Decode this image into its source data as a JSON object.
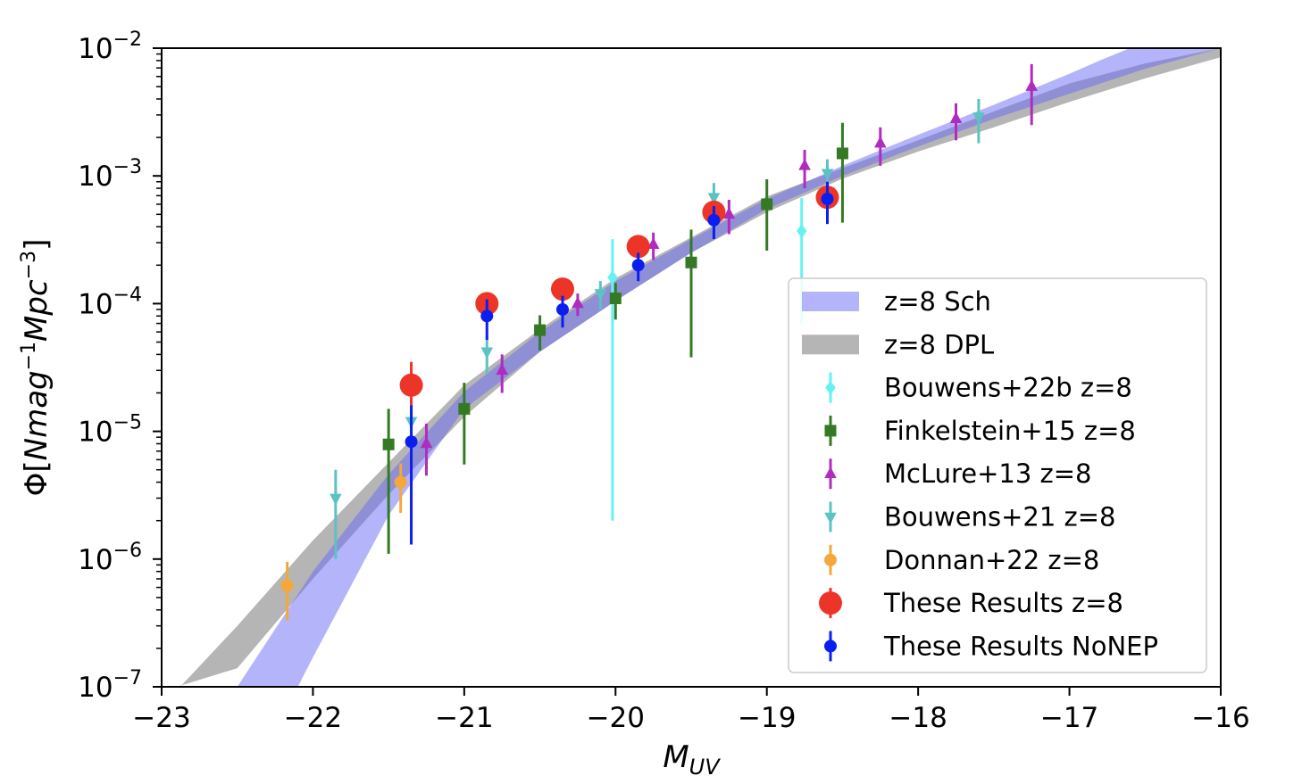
{
  "chart_data": {
    "type": "scatter",
    "title": "",
    "xlabel": "M_UV",
    "ylabel": "Φ[Nmag^-1Mpc^-3]",
    "xlim": [
      -23,
      -16
    ],
    "ylim": [
      1e-07,
      0.01
    ],
    "yscale": "log",
    "grid": false,
    "legend_position": "lower-right",
    "x_ticks": [
      -23,
      -22,
      -21,
      -20,
      -19,
      -18,
      -17,
      -16
    ],
    "x_tick_labels": [
      "−23",
      "−22",
      "−21",
      "−20",
      "−19",
      "−18",
      "−17",
      "−16"
    ],
    "y_ticks": [
      {
        "value": 0.01,
        "base": "10",
        "exp": "−2"
      },
      {
        "value": 0.001,
        "base": "10",
        "exp": "−3"
      },
      {
        "value": 0.0001,
        "base": "10",
        "exp": "−4"
      },
      {
        "value": 1e-05,
        "base": "10",
        "exp": "−5"
      },
      {
        "value": 1e-06,
        "base": "10",
        "exp": "−6"
      },
      {
        "value": 1e-07,
        "base": "10",
        "exp": "−7"
      }
    ],
    "bands": [
      {
        "name": "z=8 DPL",
        "color": "#9c9c9c",
        "opacity": 0.75,
        "upper": [
          [
            -23,
            7e-08
          ],
          [
            -22.5,
            3e-07
          ],
          [
            -22,
            1.4e-06
          ],
          [
            -21.5,
            5.7e-06
          ],
          [
            -21,
            2.3e-05
          ],
          [
            -20.5,
            6.3e-05
          ],
          [
            -20,
            0.000158
          ],
          [
            -19.5,
            0.00033
          ],
          [
            -19,
            0.00069
          ],
          [
            -18.5,
            0.00115
          ],
          [
            -18,
            0.0019
          ],
          [
            -17.5,
            0.0032
          ],
          [
            -17,
            0.0053
          ],
          [
            -16.5,
            0.0076
          ],
          [
            -16,
            0.01
          ]
        ],
        "lower": [
          [
            -22.9,
            1e-07
          ],
          [
            -22.5,
            1.4e-07
          ],
          [
            -22,
            7e-07
          ],
          [
            -21.5,
            3.2e-06
          ],
          [
            -21,
            1.3e-05
          ],
          [
            -20.5,
            4.2e-05
          ],
          [
            -20,
            0.000105
          ],
          [
            -19.5,
            0.00025
          ],
          [
            -19,
            0.00052
          ],
          [
            -18.5,
            0.00095
          ],
          [
            -18,
            0.00155
          ],
          [
            -17.5,
            0.0024
          ],
          [
            -17,
            0.0038
          ],
          [
            -16.5,
            0.0058
          ],
          [
            -16,
            0.0085
          ]
        ]
      },
      {
        "name": "z=8 Sch",
        "color": "#6a6af5",
        "opacity": 0.5,
        "upper": [
          [
            -22.5,
            1e-07
          ],
          [
            -22,
            8e-07
          ],
          [
            -21.5,
            4.6e-06
          ],
          [
            -21,
            2.05e-05
          ],
          [
            -20.5,
            6e-05
          ],
          [
            -20,
            0.00015
          ],
          [
            -19.5,
            0.00032
          ],
          [
            -19,
            0.00066
          ],
          [
            -18.5,
            0.0012
          ],
          [
            -18,
            0.0021
          ],
          [
            -17.5,
            0.0036
          ],
          [
            -17,
            0.0063
          ],
          [
            -16.8,
            0.008
          ],
          [
            -16.6,
            0.01
          ]
        ],
        "lower": [
          [
            -22.1,
            1e-07
          ],
          [
            -22,
            1.7e-07
          ],
          [
            -21.5,
            2.2e-06
          ],
          [
            -21,
            1.5e-05
          ],
          [
            -20.5,
            4.2e-05
          ],
          [
            -20,
            0.000105
          ],
          [
            -19.5,
            0.00025
          ],
          [
            -19,
            0.00055
          ],
          [
            -18.5,
            0.001
          ],
          [
            -18,
            0.0017
          ],
          [
            -17.5,
            0.0028
          ],
          [
            -17,
            0.0044
          ],
          [
            -16.5,
            0.0069
          ],
          [
            -16,
            0.01
          ]
        ]
      }
    ],
    "series": [
      {
        "name": "Bouwens+22b z=8",
        "color": "#66f2f2",
        "marker": "diamond",
        "points": [
          {
            "x": -20.02,
            "y": 0.00016,
            "lo": 2e-06,
            "hi": 0.00032
          },
          {
            "x": -18.77,
            "y": 0.00037,
            "lo": 7e-05,
            "hi": 0.00067
          }
        ]
      },
      {
        "name": "Finkelstein+15 z=8",
        "color": "#347a24",
        "marker": "square",
        "points": [
          {
            "x": -21.5,
            "y": 7.9e-06,
            "lo": 1.1e-06,
            "hi": 1.5e-05
          },
          {
            "x": -21.0,
            "y": 1.5e-05,
            "lo": 5.5e-06,
            "hi": 2.4e-05
          },
          {
            "x": -20.5,
            "y": 6.2e-05,
            "lo": 4.3e-05,
            "hi": 8.1e-05
          },
          {
            "x": -20.0,
            "y": 0.00011,
            "lo": 7.5e-05,
            "hi": 0.000145
          },
          {
            "x": -19.5,
            "y": 0.00021,
            "lo": 3.8e-05,
            "hi": 0.00038
          },
          {
            "x": -19.0,
            "y": 0.0006,
            "lo": 0.00026,
            "hi": 0.00094
          },
          {
            "x": -18.5,
            "y": 0.0015,
            "lo": 0.00043,
            "hi": 0.0026
          }
        ]
      },
      {
        "name": "McLure+13 z=8",
        "color": "#b02cbf",
        "marker": "triangle-up",
        "points": [
          {
            "x": -21.25,
            "y": 8e-06,
            "lo": 4.5e-06,
            "hi": 1.15e-05
          },
          {
            "x": -20.75,
            "y": 3e-05,
            "lo": 2e-05,
            "hi": 4e-05
          },
          {
            "x": -20.25,
            "y": 0.0001,
            "lo": 8e-05,
            "hi": 0.00012
          },
          {
            "x": -19.75,
            "y": 0.00029,
            "lo": 0.00022,
            "hi": 0.00036
          },
          {
            "x": -19.25,
            "y": 0.0005,
            "lo": 0.00035,
            "hi": 0.00065
          },
          {
            "x": -18.75,
            "y": 0.0012,
            "lo": 0.0008,
            "hi": 0.0016
          },
          {
            "x": -18.25,
            "y": 0.0018,
            "lo": 0.0012,
            "hi": 0.0024
          },
          {
            "x": -17.75,
            "y": 0.0028,
            "lo": 0.0019,
            "hi": 0.0037
          },
          {
            "x": -17.25,
            "y": 0.005,
            "lo": 0.0025,
            "hi": 0.0075
          }
        ]
      },
      {
        "name": "Bouwens+21 z=8",
        "color": "#5cc3c3",
        "marker": "triangle-down",
        "points": [
          {
            "x": -21.85,
            "y": 3e-06,
            "lo": 1e-06,
            "hi": 5e-06
          },
          {
            "x": -21.35,
            "y": 1.2e-05,
            "lo": 6e-06,
            "hi": 1.8e-05
          },
          {
            "x": -20.85,
            "y": 4.2e-05,
            "lo": 2.8e-05,
            "hi": 5.6e-05
          },
          {
            "x": -20.1,
            "y": 0.00012,
            "lo": 9e-05,
            "hi": 0.00015
          },
          {
            "x": -19.35,
            "y": 0.00068,
            "lo": 0.00048,
            "hi": 0.00088
          },
          {
            "x": -18.6,
            "y": 0.00105,
            "lo": 0.00075,
            "hi": 0.00135
          },
          {
            "x": -17.6,
            "y": 0.0029,
            "lo": 0.0018,
            "hi": 0.004
          }
        ]
      },
      {
        "name": "Donnan+22 z=8",
        "color": "#f5a83a",
        "marker": "circle",
        "points": [
          {
            "x": -22.17,
            "y": 6.2e-07,
            "lo": 3.3e-07,
            "hi": 9.5e-07
          },
          {
            "x": -21.42,
            "y": 4e-06,
            "lo": 2.3e-06,
            "hi": 5.6e-06
          }
        ]
      },
      {
        "name": "These Results z=8",
        "color": "#ec3528",
        "marker": "big-circle",
        "points": [
          {
            "x": -21.35,
            "y": 2.3e-05,
            "lo": 1.5e-05,
            "hi": 3.5e-05
          },
          {
            "x": -20.85,
            "y": 0.0001,
            "lo": 8.5e-05,
            "hi": 0.000115
          },
          {
            "x": -20.35,
            "y": 0.00013,
            "lo": 0.000105,
            "hi": 0.000155
          },
          {
            "x": -19.85,
            "y": 0.00028,
            "lo": 0.00024,
            "hi": 0.00032
          },
          {
            "x": -19.35,
            "y": 0.00052,
            "lo": 0.00045,
            "hi": 0.00059
          },
          {
            "x": -18.6,
            "y": 0.00068,
            "lo": 0.00055,
            "hi": 0.00081
          }
        ]
      },
      {
        "name": "These Results NoNEP",
        "color": "#0a1ef0",
        "marker": "circle",
        "points": [
          {
            "x": -21.35,
            "y": 8.3e-06,
            "lo": 1.3e-06,
            "hi": 1.6e-05
          },
          {
            "x": -20.85,
            "y": 8e-05,
            "lo": 5.2e-05,
            "hi": 0.000108
          },
          {
            "x": -20.35,
            "y": 9e-05,
            "lo": 6.5e-05,
            "hi": 0.000115
          },
          {
            "x": -19.85,
            "y": 0.0002,
            "lo": 0.00015,
            "hi": 0.00025
          },
          {
            "x": -19.35,
            "y": 0.00045,
            "lo": 0.00032,
            "hi": 0.00058
          },
          {
            "x": -18.6,
            "y": 0.00066,
            "lo": 0.00042,
            "hi": 0.0009
          }
        ]
      }
    ]
  }
}
